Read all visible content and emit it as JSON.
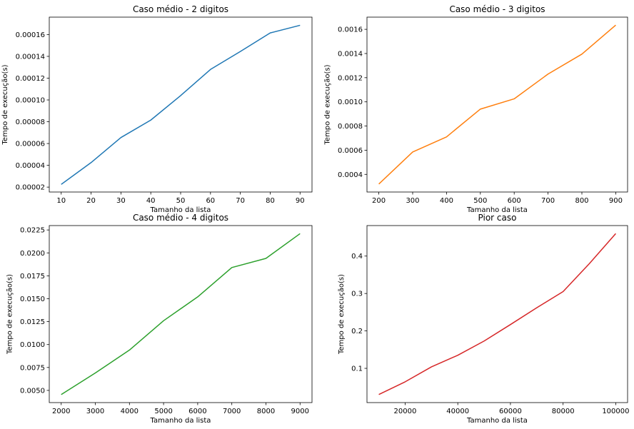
{
  "chart_data": [
    {
      "type": "line",
      "title": "Caso médio - 2 digitos",
      "xlabel": "Tamanho da lista",
      "ylabel": "Tempo de execução(s)",
      "color": "#1f77b4",
      "x": [
        10,
        20,
        30,
        40,
        50,
        60,
        70,
        80,
        90
      ],
      "y": [
        2.25e-05,
        4.25e-05,
        6.55e-05,
        8.15e-05,
        0.000104,
        0.000128,
        0.0001445,
        0.0001615,
        0.0001685
      ],
      "xlim": [
        6,
        94
      ],
      "ylim": [
        1.55e-05,
        0.000176
      ],
      "xticks": [
        10,
        20,
        30,
        40,
        50,
        60,
        70,
        80,
        90
      ],
      "xtick_labels": [
        "10",
        "20",
        "30",
        "40",
        "50",
        "60",
        "70",
        "80",
        "90"
      ],
      "yticks": [
        2e-05,
        4e-05,
        6e-05,
        8e-05,
        0.0001,
        0.00012,
        0.00014,
        0.00016
      ],
      "ytick_labels": [
        "0.00002",
        "0.00004",
        "0.00006",
        "0.00008",
        "0.00010",
        "0.00012",
        "0.00014",
        "0.00016"
      ],
      "grid": false
    },
    {
      "type": "line",
      "title": "Caso médio - 3 digitos",
      "xlabel": "Tamanho da lista",
      "ylabel": "Tempo de execução(s)",
      "color": "#ff7f0e",
      "x": [
        200,
        300,
        400,
        500,
        600,
        700,
        800,
        900
      ],
      "y": [
        0.00032,
        0.000585,
        0.00071,
        0.00094,
        0.001025,
        0.00123,
        0.001395,
        0.001635
      ],
      "xlim": [
        165,
        935
      ],
      "ylim": [
        0.000254,
        0.001701
      ],
      "xticks": [
        200,
        300,
        400,
        500,
        600,
        700,
        800,
        900
      ],
      "xtick_labels": [
        "200",
        "300",
        "400",
        "500",
        "600",
        "700",
        "800",
        "900"
      ],
      "yticks": [
        0.0004,
        0.0006,
        0.0008,
        0.001,
        0.0012,
        0.0014,
        0.0016
      ],
      "ytick_labels": [
        "0.0004",
        "0.0006",
        "0.0008",
        "0.0010",
        "0.0012",
        "0.0014",
        "0.0016"
      ],
      "grid": false
    },
    {
      "type": "line",
      "title": "Caso médio - 4 digitos",
      "xlabel": "Tamanho da lista",
      "ylabel": "Tempo de execução(s)",
      "color": "#2ca02c",
      "x": [
        2000,
        3000,
        4000,
        5000,
        6000,
        7000,
        8000,
        9000
      ],
      "y": [
        0.00455,
        0.0069,
        0.0094,
        0.0126,
        0.0152,
        0.0184,
        0.0194,
        0.0221
      ],
      "xlim": [
        1650,
        9350
      ],
      "ylim": [
        0.00367,
        0.02298
      ],
      "xticks": [
        2000,
        3000,
        4000,
        5000,
        6000,
        7000,
        8000,
        9000
      ],
      "xtick_labels": [
        "2000",
        "3000",
        "4000",
        "5000",
        "6000",
        "7000",
        "8000",
        "9000"
      ],
      "yticks": [
        0.005,
        0.0075,
        0.01,
        0.0125,
        0.015,
        0.0175,
        0.02,
        0.0225
      ],
      "ytick_labels": [
        "0.0050",
        "0.0075",
        "0.0100",
        "0.0125",
        "0.0150",
        "0.0175",
        "0.0200",
        "0.0225"
      ],
      "grid": false
    },
    {
      "type": "line",
      "title": "Pior caso",
      "xlabel": "Tamanho da lista",
      "ylabel": "Tempo de execução(s)",
      "color": "#d62728",
      "x": [
        10000,
        20000,
        30000,
        40000,
        50000,
        60000,
        70000,
        80000,
        90000,
        100000
      ],
      "y": [
        0.03,
        0.064,
        0.104,
        0.135,
        0.173,
        0.217,
        0.262,
        0.305,
        0.38,
        0.46
      ],
      "xlim": [
        5500,
        104500
      ],
      "ylim": [
        0.0085,
        0.4815
      ],
      "xticks": [
        20000,
        40000,
        60000,
        80000,
        100000
      ],
      "xtick_labels": [
        "20000",
        "40000",
        "60000",
        "80000",
        "100000"
      ],
      "yticks": [
        0.1,
        0.2,
        0.3,
        0.4
      ],
      "ytick_labels": [
        "0.1",
        "0.2",
        "0.3",
        "0.4"
      ],
      "grid": false
    }
  ]
}
